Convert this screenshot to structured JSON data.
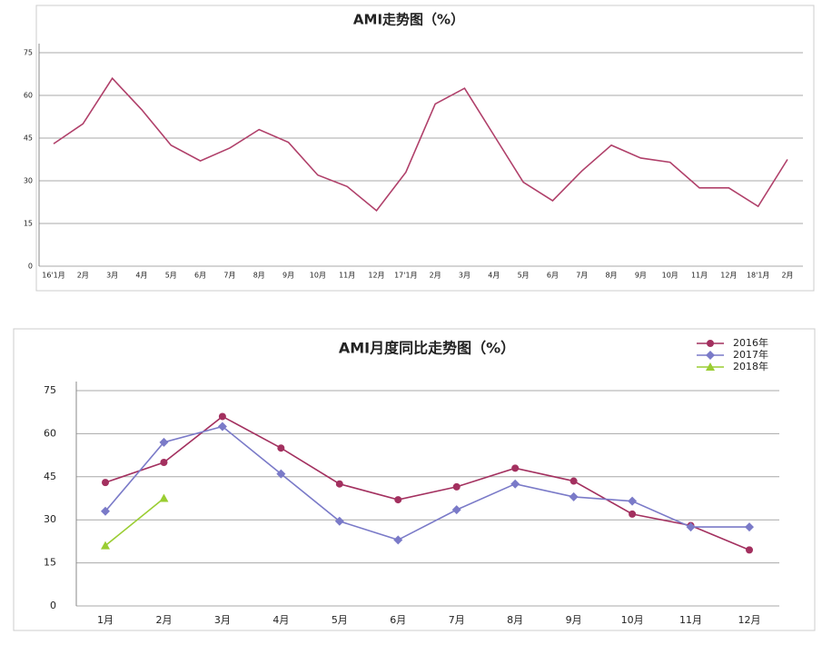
{
  "chart_data": [
    {
      "type": "line",
      "title": "AMI走势图（%）",
      "color": "#b0406a",
      "categories": [
        "16'1月",
        "2月",
        "3月",
        "4月",
        "5月",
        "6月",
        "7月",
        "8月",
        "9月",
        "10月",
        "11月",
        "12月",
        "17'1月",
        "2月",
        "3月",
        "4月",
        "5月",
        "6月",
        "7月",
        "8月",
        "9月",
        "10月",
        "11月",
        "12月",
        "18'1月",
        "2月"
      ],
      "values": [
        43,
        50,
        66,
        55,
        42.5,
        37,
        41.5,
        48,
        43.5,
        32,
        28,
        19.5,
        33,
        57,
        62.5,
        46,
        29.5,
        23,
        33.5,
        42.5,
        38,
        36.5,
        27.5,
        27.5,
        21,
        37.5
      ],
      "ylim": [
        0,
        75
      ],
      "yticks": [
        0,
        15,
        30,
        45,
        60,
        75
      ],
      "grid": true
    },
    {
      "type": "line",
      "title": "AMI月度同比走势图（%）",
      "legend": "upper right",
      "categories": [
        "1月",
        "2月",
        "3月",
        "4月",
        "5月",
        "6月",
        "7月",
        "8月",
        "9月",
        "10月",
        "11月",
        "12月"
      ],
      "series": [
        {
          "name": "2016年",
          "color": "#a3305f",
          "marker": "circle",
          "values": [
            43,
            50,
            66,
            55,
            42.5,
            37,
            41.5,
            48,
            43.5,
            32,
            28,
            19.5
          ]
        },
        {
          "name": "2017年",
          "color": "#7a7ac8",
          "marker": "diamond",
          "values": [
            33,
            57,
            62.5,
            46,
            29.5,
            23,
            33.5,
            42.5,
            38,
            36.5,
            27.5,
            27.5
          ]
        },
        {
          "name": "2018年",
          "color": "#9acd32",
          "marker": "triangle",
          "values": [
            21,
            37.5,
            null,
            null,
            null,
            null,
            null,
            null,
            null,
            null,
            null,
            null
          ]
        }
      ],
      "ylim": [
        0,
        75
      ],
      "yticks": [
        0,
        15,
        30,
        45,
        60,
        75
      ],
      "grid": true
    }
  ]
}
